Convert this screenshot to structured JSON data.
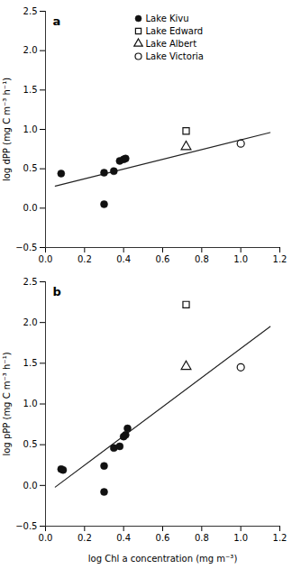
{
  "chart_data": [
    {
      "type": "scatter",
      "title": "a",
      "ylabel": "log dPP (mg C m⁻³ h⁻¹)",
      "xlim": [
        0.0,
        1.2
      ],
      "ylim": [
        -0.5,
        2.5
      ],
      "xticks": [
        {
          "value": 0,
          "label": "0.0"
        },
        0.2,
        0.4,
        0.6,
        0.8,
        {
          "value": 1,
          "label": "1.0"
        },
        1.2
      ],
      "yticks": [
        {
          "value": -0.5,
          "label": "−0.5"
        },
        {
          "value": 0,
          "label": "0.0"
        },
        0.5,
        {
          "value": 1,
          "label": "1.0"
        },
        1.5,
        {
          "value": 2,
          "label": "2.0"
        },
        2.5
      ],
      "legend": "upper left",
      "series": [
        {
          "type": "line",
          "color": "#222222",
          "x": [
            0.05,
            1.15
          ],
          "values": [
            0.28,
            0.96
          ]
        },
        {
          "name": "Lake Kivu",
          "marker": "circle",
          "color": "#111111",
          "x": [
            0.08,
            0.3,
            0.3,
            0.35,
            0.38,
            0.4,
            0.41
          ],
          "values": [
            0.44,
            0.05,
            0.45,
            0.47,
            0.6,
            0.62,
            0.63
          ]
        },
        {
          "name": "Lake Edward",
          "marker": "open_square",
          "color": "#111111",
          "x": [
            0.72
          ],
          "values": [
            0.98
          ]
        },
        {
          "name": "Lake Albert",
          "marker": "open_triangle",
          "color": "#111111",
          "x": [
            0.72
          ],
          "values": [
            0.78
          ]
        },
        {
          "name": "Lake Victoria",
          "marker": "open_circle",
          "color": "#111111",
          "x": [
            1.0
          ],
          "values": [
            0.82
          ]
        }
      ]
    },
    {
      "type": "scatter",
      "title": "b",
      "xlabel": "log Chl a concentration (mg m⁻³)",
      "ylabel": "log pPP (mg C m⁻³ h⁻¹)",
      "xlim": [
        0.0,
        1.2
      ],
      "ylim": [
        -0.5,
        2.5
      ],
      "xticks": [
        {
          "value": 0,
          "label": "0.0"
        },
        0.2,
        0.4,
        0.6,
        0.8,
        {
          "value": 1,
          "label": "1.0"
        },
        1.2
      ],
      "yticks": [
        {
          "value": -0.5,
          "label": "−0.5"
        },
        {
          "value": 0,
          "label": "0.0"
        },
        0.5,
        {
          "value": 1,
          "label": "1.0"
        },
        1.5,
        {
          "value": 2,
          "label": "2.0"
        },
        2.5
      ],
      "series": [
        {
          "type": "line",
          "color": "#222222",
          "x": [
            0.05,
            1.15
          ],
          "values": [
            -0.02,
            1.95
          ]
        },
        {
          "name": "Lake Kivu",
          "marker": "circle",
          "color": "#111111",
          "x": [
            0.08,
            0.09,
            0.3,
            0.3,
            0.35,
            0.38,
            0.4,
            0.41,
            0.42
          ],
          "values": [
            0.2,
            0.19,
            -0.08,
            0.24,
            0.46,
            0.48,
            0.6,
            0.62,
            0.7
          ]
        },
        {
          "name": "Lake Edward",
          "marker": "open_square",
          "color": "#111111",
          "x": [
            0.72
          ],
          "values": [
            2.22
          ]
        },
        {
          "name": "Lake Albert",
          "marker": "open_triangle",
          "color": "#111111",
          "x": [
            0.72
          ],
          "values": [
            1.46
          ]
        },
        {
          "name": "Lake Victoria",
          "marker": "open_circle",
          "color": "#111111",
          "x": [
            1.0
          ],
          "values": [
            1.45
          ]
        }
      ]
    }
  ]
}
